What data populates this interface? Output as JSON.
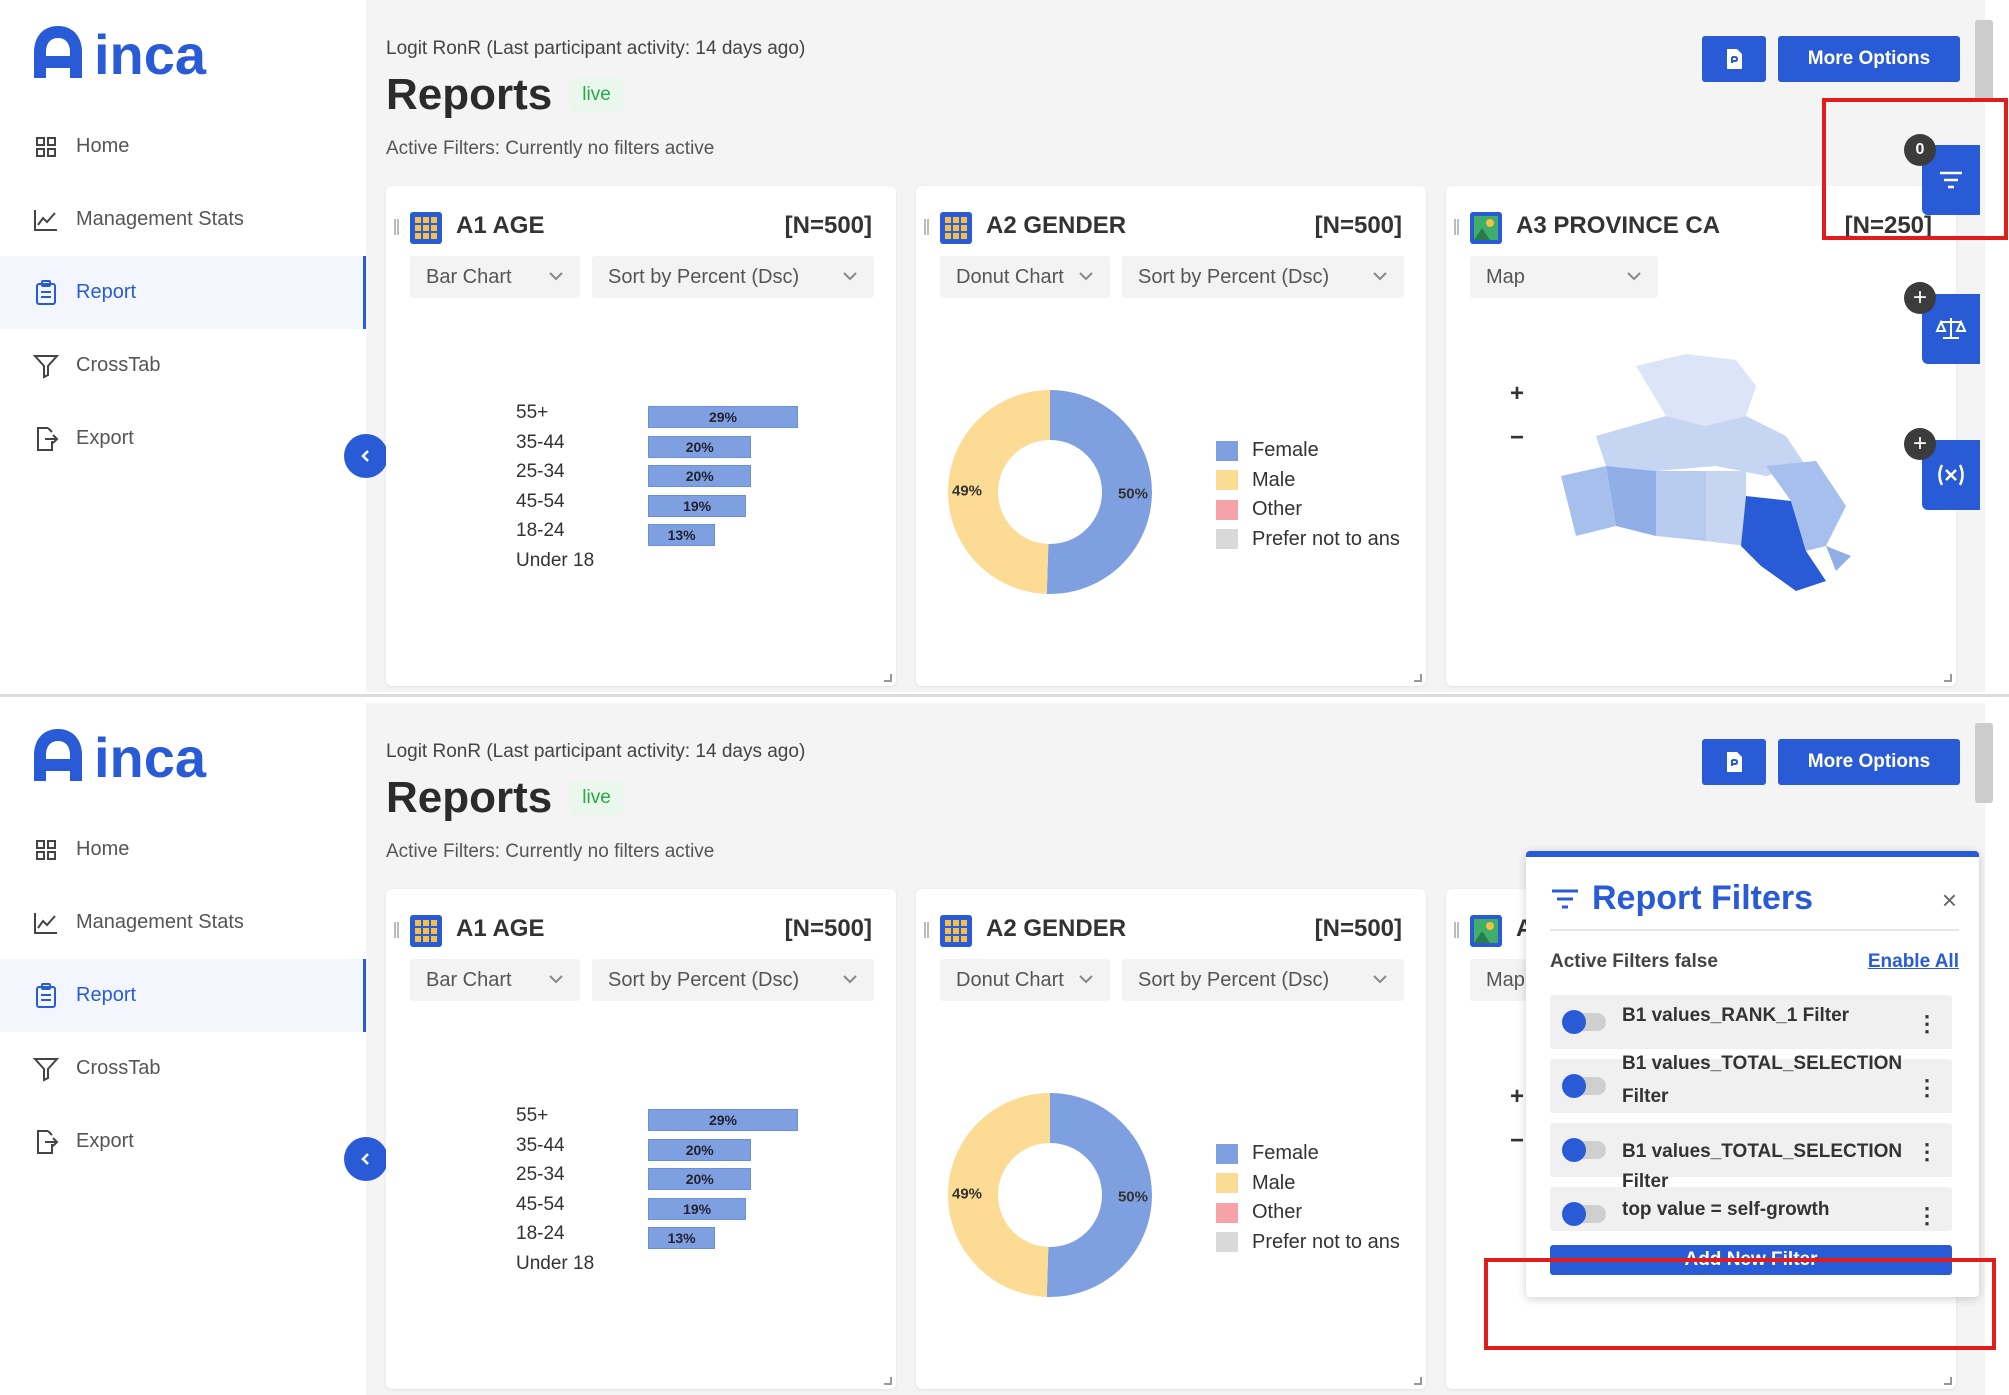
{
  "app": {
    "logo_text": "inca",
    "nav": [
      {
        "label": "Home",
        "icon": "grid-icon"
      },
      {
        "label": "Management Stats",
        "icon": "line-chart-icon"
      },
      {
        "label": "Report",
        "icon": "clipboard-icon",
        "active": true
      },
      {
        "label": "CrossTab",
        "icon": "filter-funnel-icon"
      },
      {
        "label": "Export",
        "icon": "export-icon"
      }
    ],
    "project_line": "Logit RonR (Last participant activity: 14 days ago)",
    "title": "Reports",
    "status": "live",
    "active_filters_text": "Active Filters: Currently no filters active",
    "more_options_label": "More Options",
    "filter_count": "0"
  },
  "cards": [
    {
      "title": "A1 AGE",
      "n": "[N=500]",
      "chart_type_select": "Bar Chart",
      "sort_select": "Sort by Percent (Dsc)",
      "chart_data": {
        "type": "bar",
        "orientation": "horizontal",
        "categories": [
          "55+",
          "35-44",
          "25-34",
          "45-54",
          "18-24",
          "Under 18"
        ],
        "values": [
          29,
          20,
          20,
          19,
          13,
          0
        ],
        "labels": [
          "29%",
          "20%",
          "20%",
          "19%",
          "13%",
          ""
        ],
        "unit": "%"
      }
    },
    {
      "title": "A2 GENDER",
      "n": "[N=500]",
      "chart_type_select": "Donut Chart",
      "sort_select": "Sort by Percent (Dsc)",
      "chart_data": {
        "type": "pie",
        "donut": true,
        "categories": [
          "Female",
          "Male",
          "Other",
          "Prefer not to ans"
        ],
        "values": [
          50,
          49,
          0,
          0
        ],
        "labels": [
          "50%",
          "49%",
          "",
          ""
        ],
        "colors": [
          "#7fa0e0",
          "#fcdc94",
          "#f5a3a8",
          "#d9d9d9"
        ]
      }
    },
    {
      "title": "A3 PROVINCE CA",
      "n": "[N=250]",
      "chart_type_select": "Map",
      "zoom_in": "+",
      "zoom_out": "−"
    }
  ],
  "report_filters_panel": {
    "title": "Report Filters",
    "close": "×",
    "active_filters_label": "Active Filters false",
    "enable_all_label": "Enable All",
    "filters": [
      {
        "label": "B1 values_RANK_1 Filter",
        "enabled": false
      },
      {
        "label": "B1 values_TOTAL_SELECTION Filter",
        "enabled": false
      },
      {
        "label": "B1 values_TOTAL_SELECTION Filter",
        "enabled": false
      },
      {
        "label": "top value = self-growth",
        "enabled": false
      }
    ],
    "add_button_label": "Add New Filter"
  },
  "panel_partial_card_select": "Map",
  "panel_partial_card_title": "A",
  "colors": {
    "accent": "#2a5bd7",
    "highlight_box": "#e21b1b",
    "status_green": "#28a745"
  }
}
